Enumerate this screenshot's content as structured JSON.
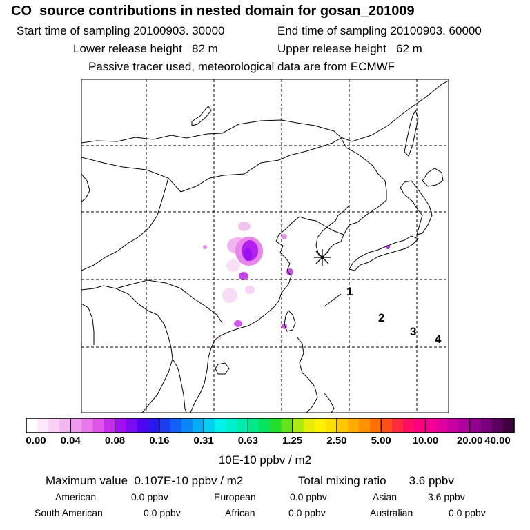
{
  "header": {
    "title": "CO  source contributions in nested domain for gosan_201009",
    "start_label": "Start time of sampling 20100903. 30000",
    "end_label": "End time of sampling 20100903. 60000",
    "lower_label": "Lower release height   82 m",
    "upper_label": "Upper release height   62 m",
    "note": "Passive tracer used, meteorological data are from ECMWF"
  },
  "map": {
    "receptor_marker": "asterisk",
    "labels": [
      "1",
      "2",
      "3",
      "4"
    ]
  },
  "colorbar": {
    "ticks": [
      "0.00",
      "0.04",
      "0.08",
      "0.16",
      "0.31",
      "0.63",
      "1.25",
      "2.50",
      "5.00",
      "10.00",
      "20.00",
      "40.00"
    ],
    "colors": [
      "#ffffff",
      "#fde8fb",
      "#f9d0f6",
      "#f4b6f1",
      "#ef9aed",
      "#e779ea",
      "#de55e7",
      "#c52fec",
      "#a40ff2",
      "#7a0bf3",
      "#4f06ef",
      "#2a16ef",
      "#1c3cf2",
      "#1260f5",
      "#0b86f7",
      "#06acf6",
      "#05d0f2",
      "#02f2ed",
      "#00efcf",
      "#00ebae",
      "#00e88a",
      "#06e45f",
      "#21df2b",
      "#66e41a",
      "#aaea12",
      "#e4ef09",
      "#fff200",
      "#ffe000",
      "#ffc900",
      "#ffae00",
      "#ff9200",
      "#ff7200",
      "#ff4f1b",
      "#ff2c40",
      "#ff0e64",
      "#ff0080",
      "#f60094",
      "#e1009e",
      "#c800a2",
      "#ae009c",
      "#930090",
      "#78007c",
      "#5a005e",
      "#3e0040"
    ],
    "unit": "10E-10 ppbv / m2"
  },
  "summary": {
    "max_label": "Maximum value  0.107E-10 ppbv / m2",
    "total_label": "Total mixing ratio       3.6 ppbv",
    "american_label": "American",
    "american_value": "0.0 ppbv",
    "european_label": "European",
    "european_value": "0.0 ppbv",
    "asian_label": "Asian",
    "asian_value": "3.6 ppbv",
    "south_american_label": "South American",
    "south_american_value": "0.0 ppbv",
    "african_label": "African",
    "african_value": "0.0 ppbv",
    "australian_label": "Australian",
    "australian_value": "0.0 ppbv"
  },
  "colors": {
    "coastline": "#000000",
    "grid": "#000000"
  }
}
